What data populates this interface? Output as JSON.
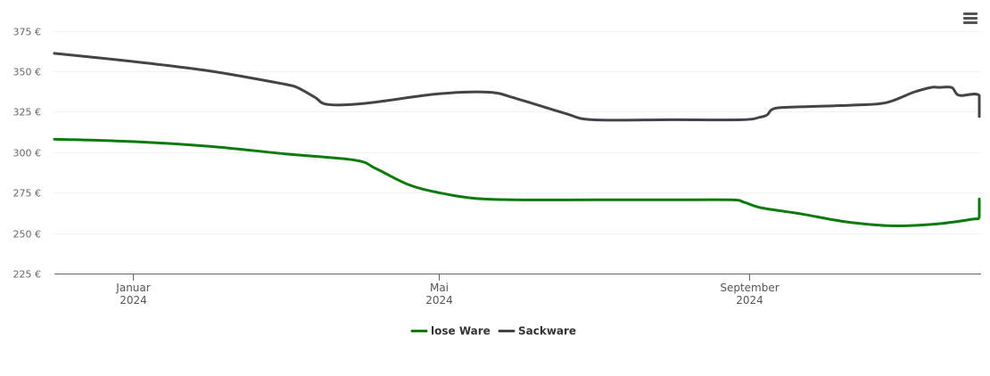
{
  "chart_data": {
    "type": "line",
    "currency_suffix": "€",
    "ylim": [
      225,
      375
    ],
    "y_ticks": [
      225,
      250,
      275,
      300,
      325,
      350,
      375
    ],
    "y_tick_labels": [
      "225 €",
      "250 €",
      "275 €",
      "300 €",
      "325 €",
      "350 €",
      "375 €"
    ],
    "x_range": [
      "2023-12-01",
      "2024-12-01"
    ],
    "x_ticks": [
      {
        "date": "2024-01-01",
        "month": "Januar",
        "year": "2024"
      },
      {
        "date": "2024-05-01",
        "month": "Mai",
        "year": "2024"
      },
      {
        "date": "2024-09-01",
        "month": "September",
        "year": "2024"
      }
    ],
    "grid": true,
    "legend_position": "bottom-center",
    "series": [
      {
        "name": "lose Ware",
        "color": "#0a7a0a",
        "points": [
          [
            "2023-12-01",
            308
          ],
          [
            "2024-01-01",
            306.5
          ],
          [
            "2024-02-01",
            303.5
          ],
          [
            "2024-03-01",
            299
          ],
          [
            "2024-03-29",
            295
          ],
          [
            "2024-04-06",
            290
          ],
          [
            "2024-04-19",
            280
          ],
          [
            "2024-05-01",
            275
          ],
          [
            "2024-05-15",
            271.5
          ],
          [
            "2024-06-01",
            270.5
          ],
          [
            "2024-07-01",
            270.5
          ],
          [
            "2024-08-01",
            270.5
          ],
          [
            "2024-08-25",
            270.5
          ],
          [
            "2024-08-30",
            269
          ],
          [
            "2024-09-06",
            265.5
          ],
          [
            "2024-09-21",
            262
          ],
          [
            "2024-10-09",
            257
          ],
          [
            "2024-10-27",
            254.5
          ],
          [
            "2024-11-13",
            255.5
          ],
          [
            "2024-11-28",
            258.5
          ],
          [
            "2024-12-01",
            260
          ],
          [
            "2024-12-01",
            271
          ]
        ]
      },
      {
        "name": "Sackware",
        "color": "#434348",
        "points": [
          [
            "2023-12-01",
            361
          ],
          [
            "2024-01-01",
            356
          ],
          [
            "2024-02-01",
            350
          ],
          [
            "2024-03-01",
            342
          ],
          [
            "2024-03-06",
            340
          ],
          [
            "2024-03-13",
            334
          ],
          [
            "2024-03-18",
            329.5
          ],
          [
            "2024-04-01",
            330
          ],
          [
            "2024-05-01",
            336
          ],
          [
            "2024-05-21",
            337
          ],
          [
            "2024-06-01",
            333
          ],
          [
            "2024-06-20",
            324
          ],
          [
            "2024-07-01",
            320
          ],
          [
            "2024-08-01",
            320
          ],
          [
            "2024-08-29",
            320
          ],
          [
            "2024-09-05",
            321.5
          ],
          [
            "2024-09-08",
            323
          ],
          [
            "2024-09-11",
            327
          ],
          [
            "2024-09-21",
            328
          ],
          [
            "2024-10-11",
            329
          ],
          [
            "2024-10-25",
            330.5
          ],
          [
            "2024-11-05",
            337
          ],
          [
            "2024-11-12",
            340
          ],
          [
            "2024-11-15",
            340
          ],
          [
            "2024-11-20",
            340
          ],
          [
            "2024-11-22",
            336
          ],
          [
            "2024-11-24",
            335
          ],
          [
            "2024-12-01",
            335
          ],
          [
            "2024-12-01",
            322
          ]
        ]
      }
    ]
  },
  "legend": {
    "items": [
      {
        "label": "lose Ware",
        "color": "#0a7a0a"
      },
      {
        "label": "Sackware",
        "color": "#434348"
      }
    ]
  },
  "menu": {
    "icon": "hamburger-menu-icon"
  }
}
